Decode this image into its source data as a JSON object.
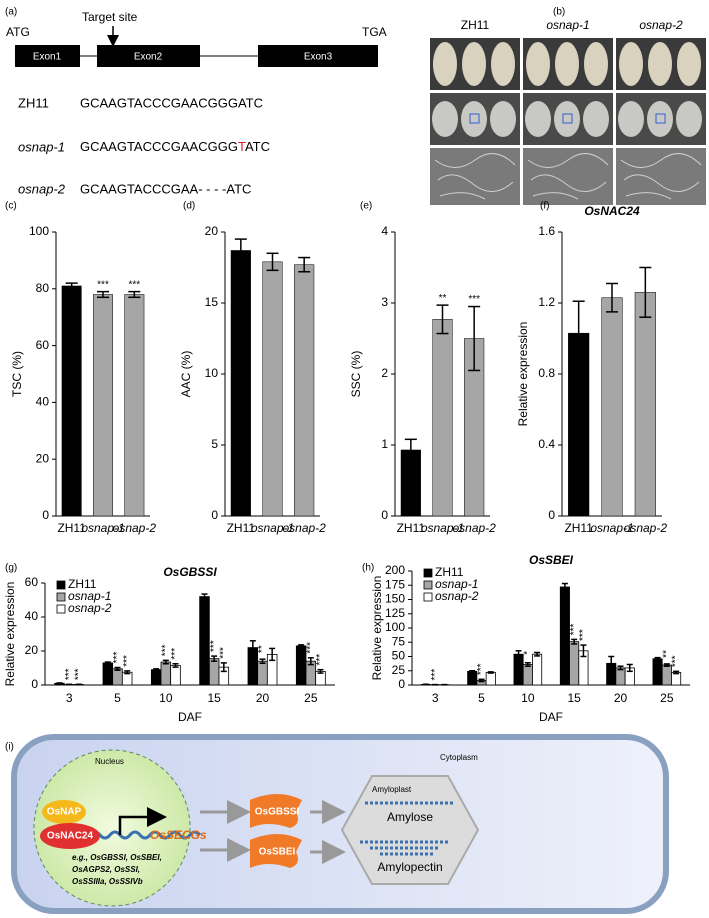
{
  "gene": {
    "panel": "(a)",
    "start": "ATG",
    "stop": "TGA",
    "target": "Target site",
    "exons": [
      "Exon1",
      "Exon2",
      "Exon3"
    ],
    "rows": [
      {
        "name": "ZH11",
        "seq": [
          "GCAAGTACCCGAACGGGATC"
        ]
      },
      {
        "name": "osnap-1",
        "seq": [
          "GCAAGTACCCGAACGGG",
          "T",
          "ATC"
        ]
      },
      {
        "name": "osnap-2",
        "seq": [
          "GCAAGTACCCGAA- - - -ATC"
        ]
      }
    ]
  },
  "photos": {
    "panel": "(b)",
    "columns": [
      "ZH11",
      "osnap-1",
      "osnap-2"
    ]
  },
  "chart_data": [
    {
      "type": "bar",
      "panel": "(c)",
      "y_label": "TSC (%)",
      "categories": [
        "ZH11",
        "osnap-1",
        "osnap-2"
      ],
      "values": [
        81,
        78,
        78
      ],
      "errors": [
        1,
        1,
        1
      ],
      "significance": [
        null,
        "***",
        "***"
      ],
      "colors": [
        "#000000",
        "#a6a6a6",
        "#a6a6a6"
      ],
      "ylim": [
        0,
        100
      ],
      "yticks": [
        0,
        20,
        40,
        60,
        80,
        100
      ]
    },
    {
      "type": "bar",
      "panel": "(d)",
      "y_label": "AAC (%)",
      "categories": [
        "ZH11",
        "osnap-1",
        "osnap-2"
      ],
      "values": [
        18.7,
        17.9,
        17.7
      ],
      "errors": [
        0.8,
        0.6,
        0.5
      ],
      "significance": [
        null,
        null,
        null
      ],
      "colors": [
        "#000000",
        "#a6a6a6",
        "#a6a6a6"
      ],
      "ylim": [
        0,
        20
      ],
      "yticks": [
        0,
        5,
        10,
        15,
        20
      ]
    },
    {
      "type": "bar",
      "panel": "(e)",
      "y_label": "SSC (%)",
      "categories": [
        "ZH11",
        "osnap-1",
        "osnap-2"
      ],
      "values": [
        0.93,
        2.77,
        2.5
      ],
      "errors": [
        0.15,
        0.2,
        0.45
      ],
      "significance": [
        null,
        "**",
        "***"
      ],
      "colors": [
        "#000000",
        "#a6a6a6",
        "#a6a6a6"
      ],
      "ylim": [
        0,
        4
      ],
      "yticks": [
        0,
        1,
        2,
        3,
        4
      ]
    },
    {
      "type": "bar",
      "panel": "(f)",
      "title": "OsNAC24",
      "y_label": "Relative expression",
      "categories": [
        "ZH11",
        "osnap-1",
        "osnap-2"
      ],
      "values": [
        1.03,
        1.23,
        1.26
      ],
      "errors": [
        0.18,
        0.08,
        0.14
      ],
      "significance": [
        null,
        null,
        null
      ],
      "colors": [
        "#000000",
        "#a6a6a6",
        "#a6a6a6"
      ],
      "ylim": [
        0,
        1.6
      ],
      "yticks": [
        0,
        0.4,
        0.8,
        1.2,
        1.6
      ]
    },
    {
      "type": "bar",
      "panel": "(g)",
      "title": "OsGBSSI",
      "y_label": "Relative expression",
      "x_label": "DAF",
      "categories": [
        "3",
        "5",
        "10",
        "15",
        "20",
        "25"
      ],
      "ylim": [
        0,
        60
      ],
      "yticks": [
        0,
        20,
        40,
        60
      ],
      "series": [
        {
          "name": "ZH11",
          "color": "#000000",
          "values": [
            1,
            13,
            9,
            52,
            22,
            23
          ],
          "errors": [
            0.2,
            0.5,
            0.5,
            1.5,
            4,
            0.6
          ],
          "significance": [
            null,
            null,
            null,
            null,
            null,
            null
          ]
        },
        {
          "name": "osnap-1",
          "color": "#a6a6a6",
          "values": [
            0.3,
            9.5,
            13.5,
            15.5,
            14,
            14
          ],
          "errors": [
            0.1,
            0.8,
            1,
            1.5,
            1.2,
            2
          ],
          "significance": [
            "***",
            "***",
            "***",
            "***",
            "**",
            "***"
          ]
        },
        {
          "name": "osnap-2",
          "color": "#ffffff",
          "values": [
            0.3,
            7.5,
            11.5,
            10.5,
            18,
            8
          ],
          "errors": [
            0.1,
            0.8,
            1,
            2.5,
            3.5,
            1
          ],
          "significance": [
            "***",
            "***",
            "***",
            "***",
            null,
            "***"
          ]
        }
      ]
    },
    {
      "type": "bar",
      "panel": "(h)",
      "title": "OsSBEI",
      "y_label": "Relative expression",
      "x_label": "DAF",
      "categories": [
        "3",
        "5",
        "10",
        "15",
        "20",
        "25"
      ],
      "ylim": [
        0,
        200
      ],
      "yticks": [
        0,
        25,
        50,
        75,
        100,
        125,
        150,
        175,
        200
      ],
      "series": [
        {
          "name": "ZH11",
          "color": "#000000",
          "values": [
            1,
            24,
            54,
            172,
            38,
            46
          ],
          "errors": [
            0.3,
            1,
            6,
            6,
            12,
            2
          ],
          "significance": [
            null,
            null,
            null,
            null,
            null,
            null
          ]
        },
        {
          "name": "osnap-1",
          "color": "#a6a6a6",
          "values": [
            0.5,
            8,
            36,
            76,
            30,
            35
          ],
          "errors": [
            0.2,
            2,
            3,
            4,
            3,
            2
          ],
          "significance": [
            "***",
            "***",
            "*",
            "***",
            null,
            "**"
          ]
        },
        {
          "name": "osnap-2",
          "color": "#ffffff",
          "values": [
            0.5,
            22,
            54,
            60,
            30,
            22
          ],
          "errors": [
            0.2,
            1,
            3,
            10,
            6,
            2
          ],
          "significance": [
            null,
            null,
            null,
            "***",
            null,
            "***"
          ]
        }
      ]
    }
  ],
  "model": {
    "panel": "(i)",
    "nucleus": "Nucleus",
    "cytoplasm": "Cytoplasm",
    "activator": "OsNAP",
    "factor": "OsNAC24",
    "genes": "OsSECGs",
    "examples": [
      "e.g., OsGBSSI, OsSBEI,",
      "OsAGPS2, OsSSI,",
      "OsSSIIIa, OsSSIVb"
    ],
    "enzymes": [
      "OsGBSSI",
      "OsSBEI"
    ],
    "organelle": "Amyloplast",
    "products": [
      "Amylose",
      "Amylopectin"
    ]
  }
}
